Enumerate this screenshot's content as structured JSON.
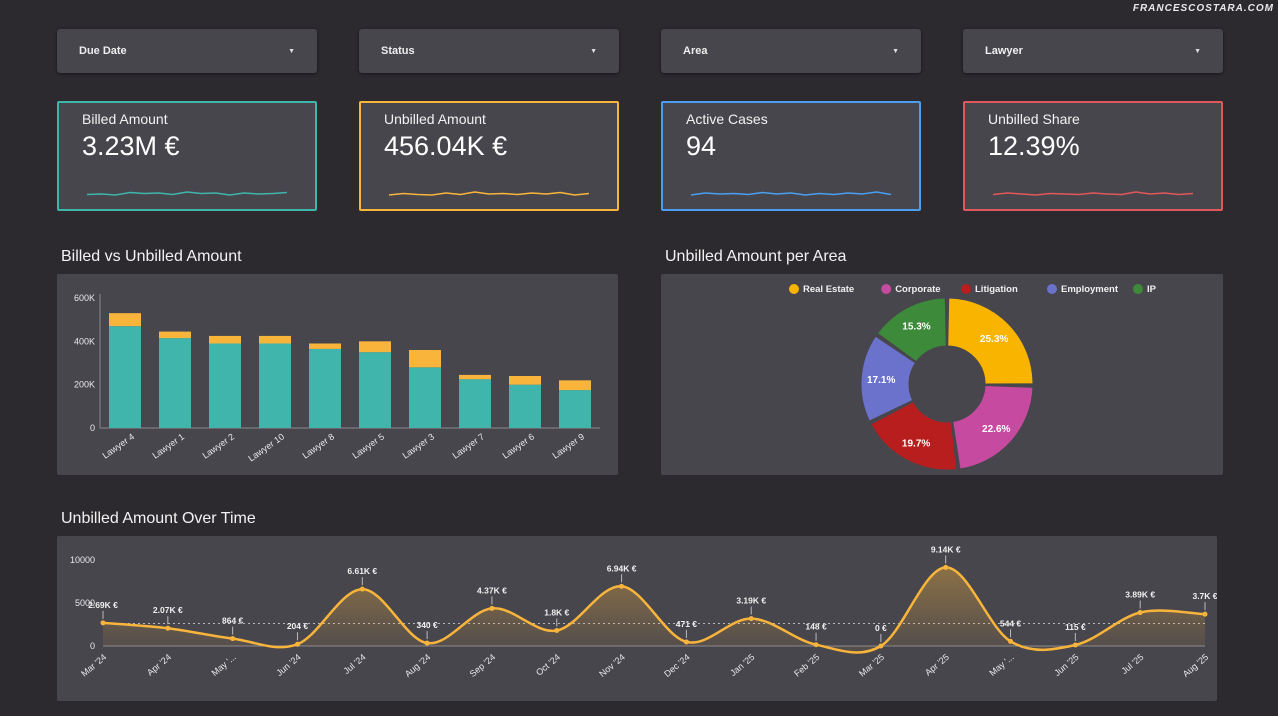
{
  "brand": "FRANCESCOSTARA.COM",
  "filters": [
    {
      "label": "Due Date"
    },
    {
      "label": "Status"
    },
    {
      "label": "Area"
    },
    {
      "label": "Lawyer"
    }
  ],
  "kpis": [
    {
      "label": "Billed Amount",
      "value": "3.23M €",
      "color": "#3fb5ac",
      "spark": [
        0.35,
        0.4,
        0.3,
        0.55,
        0.45,
        0.5,
        0.35,
        0.6,
        0.45,
        0.5,
        0.3,
        0.5,
        0.4,
        0.45,
        0.55
      ]
    },
    {
      "label": "Unbilled Amount",
      "value": "456.04K €",
      "color": "#f9b53b",
      "spark": [
        0.3,
        0.45,
        0.35,
        0.3,
        0.5,
        0.35,
        0.6,
        0.4,
        0.45,
        0.35,
        0.5,
        0.4,
        0.55,
        0.3,
        0.45
      ]
    },
    {
      "label": "Active Cases",
      "value": "94",
      "color": "#4a9ff0",
      "spark": [
        0.3,
        0.5,
        0.4,
        0.45,
        0.35,
        0.55,
        0.4,
        0.5,
        0.3,
        0.45,
        0.35,
        0.5,
        0.4,
        0.6,
        0.35
      ]
    },
    {
      "label": "Unbilled Share",
      "value": "12.39%",
      "color": "#e0585b",
      "spark": [
        0.35,
        0.5,
        0.4,
        0.3,
        0.45,
        0.4,
        0.35,
        0.5,
        0.4,
        0.35,
        0.6,
        0.4,
        0.5,
        0.35,
        0.45
      ]
    }
  ],
  "sections": {
    "bar_title": "Billed vs Unbilled Amount",
    "pie_title": "Unbilled Amount per Area",
    "line_title": "Unbilled Amount Over Time"
  },
  "chart_data": [
    {
      "type": "bar",
      "stacked": true,
      "categories": [
        "Lawyer 4",
        "Lawyer 1",
        "Lawyer 2",
        "Lawyer 10",
        "Lawyer 8",
        "Lawyer 5",
        "Lawyer 3",
        "Lawyer 7",
        "Lawyer 6",
        "Lawyer 9"
      ],
      "series": [
        {
          "color": "#3fb5ac",
          "values": [
            470000,
            415000,
            390000,
            390000,
            365000,
            350000,
            280000,
            225000,
            200000,
            175000
          ]
        },
        {
          "color": "#f9b53b",
          "values": [
            60000,
            30000,
            35000,
            35000,
            25000,
            50000,
            80000,
            20000,
            40000,
            45000
          ]
        }
      ],
      "ylim": [
        0,
        600000
      ],
      "yticks": [
        {
          "v": 0,
          "label": "0"
        },
        {
          "v": 200000,
          "label": "200K"
        },
        {
          "v": 400000,
          "label": "400K"
        },
        {
          "v": 600000,
          "label": "600K"
        }
      ],
      "grid": false,
      "legend": "none"
    },
    {
      "type": "pie",
      "donut": true,
      "legend": "top",
      "slices": [
        {
          "name": "Real Estate",
          "value": 25.3,
          "label": "25.3%",
          "color": "#f9b400"
        },
        {
          "name": "Corporate",
          "value": 22.6,
          "label": "22.6%",
          "color": "#c64aa0"
        },
        {
          "name": "Litigation",
          "value": 19.7,
          "label": "19.7%",
          "color": "#b81e1e"
        },
        {
          "name": "Employment",
          "value": 17.1,
          "label": "17.1%",
          "color": "#6a72cc"
        },
        {
          "name": "IP",
          "value": 15.3,
          "label": "15.3%",
          "color": "#3d8a3a"
        }
      ]
    },
    {
      "type": "line",
      "smooth": true,
      "area": true,
      "color": "#f9b53b",
      "categories": [
        "Mar '24",
        "Apr '24",
        "May '...",
        "Jun '24",
        "Jul '24",
        "Aug '24",
        "Sep '24",
        "Oct '24",
        "Nov '24",
        "Dec '24",
        "Jan '25",
        "Feb '25",
        "Mar '25",
        "Apr '25",
        "May '...",
        "Jun '25",
        "Jul '25",
        "Aug '25"
      ],
      "values": [
        2690,
        2070,
        864,
        204,
        6610,
        340,
        4370,
        1800,
        6940,
        471,
        3190,
        148,
        0,
        9140,
        544,
        115,
        3890,
        3700
      ],
      "labels": [
        "2.69K €",
        "2.07K €",
        "864 €",
        "204 €",
        "6.61K €",
        "340 €",
        "4.37K €",
        "1.8K €",
        "6.94K €",
        "471 €",
        "3.19K €",
        "148 €",
        "0 €",
        "9.14K €",
        "544 €",
        "115 €",
        "3.89K €",
        "3.7K €"
      ],
      "ylim": [
        0,
        10000
      ],
      "yticks": [
        {
          "v": 0,
          "label": "0"
        },
        {
          "v": 5000,
          "label": "5000"
        },
        {
          "v": 10000,
          "label": "10000"
        }
      ],
      "average_line": true,
      "legend": "none"
    }
  ]
}
